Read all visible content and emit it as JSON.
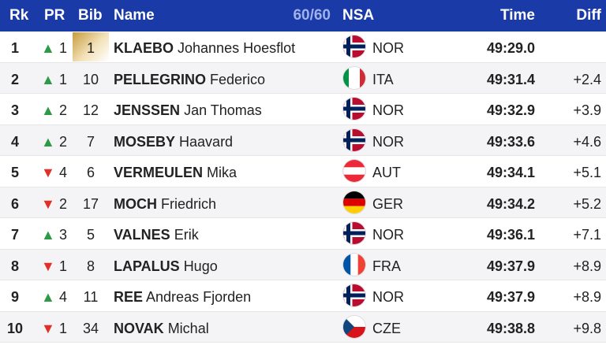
{
  "header": {
    "rk": "Rk",
    "pr": "PR",
    "bib": "Bib",
    "name": "Name",
    "count": "60/60",
    "nsa": "NSA",
    "time": "Time",
    "diff": "Diff"
  },
  "rows": [
    {
      "rank": "1",
      "trend": "up",
      "trend_icon": "▲",
      "pr": "1",
      "bib": "1",
      "last": "KLAEBO",
      "first": "Johannes Hoesflot",
      "flag": "NOR",
      "nsa": "NOR",
      "time": "49:29.0",
      "diff": ""
    },
    {
      "rank": "2",
      "trend": "up",
      "trend_icon": "▲",
      "pr": "1",
      "bib": "10",
      "last": "PELLEGRINO",
      "first": "Federico",
      "flag": "ITA",
      "nsa": "ITA",
      "time": "49:31.4",
      "diff": "+2.4"
    },
    {
      "rank": "3",
      "trend": "up",
      "trend_icon": "▲",
      "pr": "2",
      "bib": "12",
      "last": "JENSSEN",
      "first": "Jan Thomas",
      "flag": "NOR",
      "nsa": "NOR",
      "time": "49:32.9",
      "diff": "+3.9"
    },
    {
      "rank": "4",
      "trend": "up",
      "trend_icon": "▲",
      "pr": "2",
      "bib": "7",
      "last": "MOSEBY",
      "first": "Haavard",
      "flag": "NOR",
      "nsa": "NOR",
      "time": "49:33.6",
      "diff": "+4.6"
    },
    {
      "rank": "5",
      "trend": "down",
      "trend_icon": "▼",
      "pr": "4",
      "bib": "6",
      "last": "VERMEULEN",
      "first": "Mika",
      "flag": "AUT",
      "nsa": "AUT",
      "time": "49:34.1",
      "diff": "+5.1"
    },
    {
      "rank": "6",
      "trend": "down",
      "trend_icon": "▼",
      "pr": "2",
      "bib": "17",
      "last": "MOCH",
      "first": "Friedrich",
      "flag": "GER",
      "nsa": "GER",
      "time": "49:34.2",
      "diff": "+5.2"
    },
    {
      "rank": "7",
      "trend": "up",
      "trend_icon": "▲",
      "pr": "3",
      "bib": "5",
      "last": "VALNES",
      "first": "Erik",
      "flag": "NOR",
      "nsa": "NOR",
      "time": "49:36.1",
      "diff": "+7.1"
    },
    {
      "rank": "8",
      "trend": "down",
      "trend_icon": "▼",
      "pr": "1",
      "bib": "8",
      "last": "LAPALUS",
      "first": "Hugo",
      "flag": "FRA",
      "nsa": "FRA",
      "time": "49:37.9",
      "diff": "+8.9"
    },
    {
      "rank": "9",
      "trend": "up",
      "trend_icon": "▲",
      "pr": "4",
      "bib": "11",
      "last": "REE",
      "first": "Andreas Fjorden",
      "flag": "NOR",
      "nsa": "NOR",
      "time": "49:37.9",
      "diff": "+8.9"
    },
    {
      "rank": "10",
      "trend": "down",
      "trend_icon": "▼",
      "pr": "1",
      "bib": "34",
      "last": "NOVAK",
      "first": "Michal",
      "flag": "CZE",
      "nsa": "CZE",
      "time": "49:38.8",
      "diff": "+9.8"
    }
  ],
  "colors": {
    "header_bg": "#1a3aa8",
    "up": "#2e9a48",
    "down": "#e03028",
    "leader_bib": "#c79b3c"
  }
}
